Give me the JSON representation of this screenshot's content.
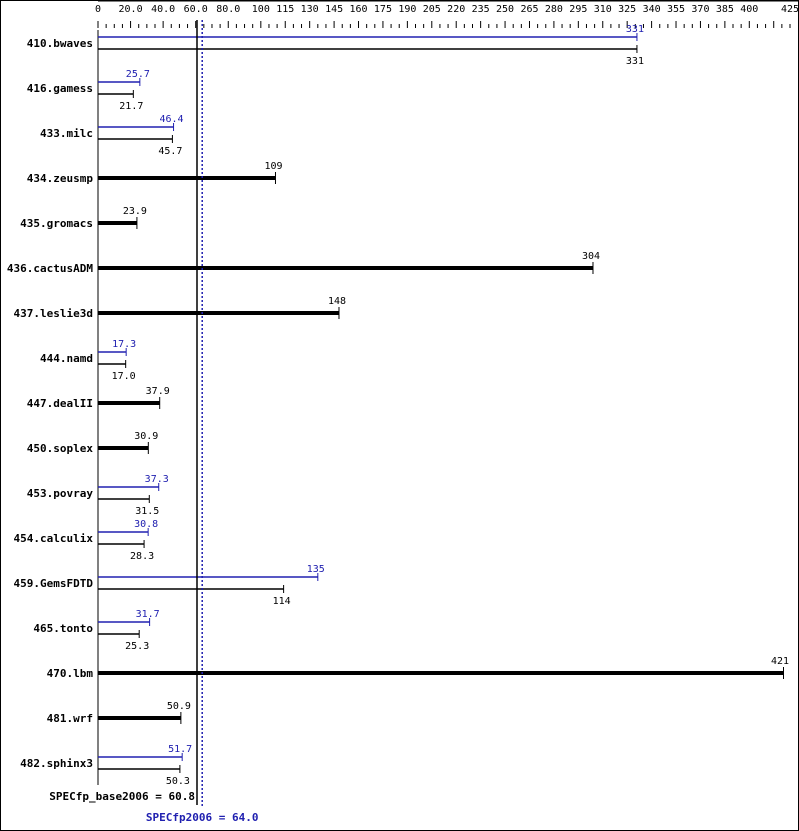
{
  "chart_data": {
    "type": "bar",
    "orientation": "horizontal",
    "xlim": [
      0,
      425
    ],
    "tick_labels": [
      "0",
      "20.0",
      "40.0",
      "60.0",
      "80.0",
      "100",
      "115",
      "130",
      "145",
      "160",
      "175",
      "190",
      "205",
      "220",
      "235",
      "250",
      "265",
      "280",
      "295",
      "310",
      "325",
      "340",
      "355",
      "370",
      "385",
      "400",
      "425"
    ],
    "tick_values": [
      0,
      20,
      40,
      60,
      80,
      100,
      115,
      130,
      145,
      160,
      175,
      190,
      205,
      220,
      235,
      250,
      265,
      280,
      295,
      310,
      325,
      340,
      355,
      370,
      385,
      400,
      425
    ],
    "colors": {
      "peak": "#2020b0",
      "base": "#000000"
    },
    "benchmarks": [
      {
        "name": "410.bwaves",
        "peak": 331,
        "peak_label": "331",
        "base": 331,
        "base_label": "331"
      },
      {
        "name": "416.gamess",
        "peak": 25.7,
        "peak_label": "25.7",
        "base": 21.7,
        "base_label": "21.7"
      },
      {
        "name": "433.milc",
        "peak": 46.4,
        "peak_label": "46.4",
        "base": 45.7,
        "base_label": "45.7"
      },
      {
        "name": "434.zeusmp",
        "base": 109,
        "base_label": "109"
      },
      {
        "name": "435.gromacs",
        "base": 23.9,
        "base_label": "23.9"
      },
      {
        "name": "436.cactusADM",
        "base": 304,
        "base_label": "304"
      },
      {
        "name": "437.leslie3d",
        "base": 148,
        "base_label": "148"
      },
      {
        "name": "444.namd",
        "peak": 17.3,
        "peak_label": "17.3",
        "base": 17.0,
        "base_label": "17.0"
      },
      {
        "name": "447.dealII",
        "base": 37.9,
        "base_label": "37.9"
      },
      {
        "name": "450.soplex",
        "base": 30.9,
        "base_label": "30.9"
      },
      {
        "name": "453.povray",
        "peak": 37.3,
        "peak_label": "37.3",
        "base": 31.5,
        "base_label": "31.5"
      },
      {
        "name": "454.calculix",
        "peak": 30.8,
        "peak_label": "30.8",
        "base": 28.3,
        "base_label": "28.3"
      },
      {
        "name": "459.GemsFDTD",
        "peak": 135,
        "peak_label": "135",
        "base": 114,
        "base_label": "114"
      },
      {
        "name": "465.tonto",
        "peak": 31.7,
        "peak_label": "31.7",
        "base": 25.3,
        "base_label": "25.3"
      },
      {
        "name": "470.lbm",
        "base": 421,
        "base_label": "421"
      },
      {
        "name": "481.wrf",
        "base": 50.9,
        "base_label": "50.9"
      },
      {
        "name": "482.sphinx3",
        "peak": 51.7,
        "peak_label": "51.7",
        "base": 50.3,
        "base_label": "50.3"
      }
    ],
    "reference_lines": [
      {
        "label": "SPECfp_base2006 = 60.8",
        "value": 60.8,
        "color": "#000000",
        "style": "solid"
      },
      {
        "label": "SPECfp2006 = 64.0",
        "value": 64.0,
        "color": "#2020b0",
        "style": "dotted"
      }
    ]
  }
}
